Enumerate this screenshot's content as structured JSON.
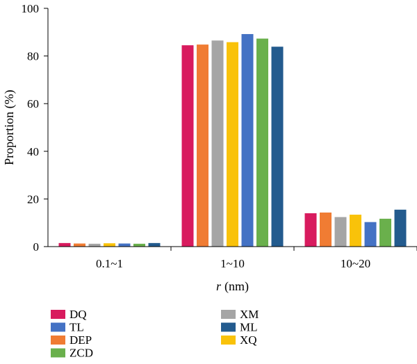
{
  "chart_data": {
    "type": "bar",
    "categories": [
      "0.1~1",
      "1~10",
      "10~20"
    ],
    "series": [
      {
        "name": "DQ",
        "color": "#d81b5e",
        "values": [
          1.5,
          84.5,
          14.0
        ]
      },
      {
        "name": "DEP",
        "color": "#f07c33",
        "values": [
          1.3,
          84.8,
          14.3
        ]
      },
      {
        "name": "XM",
        "color": "#a5a5a5",
        "values": [
          1.2,
          86.5,
          12.4
        ]
      },
      {
        "name": "XQ",
        "color": "#f9c20a",
        "values": [
          1.4,
          85.8,
          13.4
        ]
      },
      {
        "name": "TL",
        "color": "#4472c4",
        "values": [
          1.3,
          89.2,
          10.3
        ]
      },
      {
        "name": "ZCD",
        "color": "#6ab04c",
        "values": [
          1.2,
          87.3,
          11.7
        ]
      },
      {
        "name": "ML",
        "color": "#235b8e",
        "values": [
          1.5,
          83.9,
          15.5
        ]
      }
    ],
    "xlabel": "r (nm)",
    "xlabel_var": "r",
    "xlabel_unit": "(nm)",
    "ylabel": "Proportion (%)",
    "ylim": [
      0,
      100
    ],
    "yticks": [
      0,
      20,
      40,
      60,
      80,
      100
    ],
    "grid": false,
    "legend": {
      "placement": "bottom-left",
      "columns": [
        [
          "DQ",
          "TL",
          "DEP",
          "ZCD"
        ],
        [
          "XM",
          "ML",
          "XQ"
        ]
      ]
    }
  }
}
